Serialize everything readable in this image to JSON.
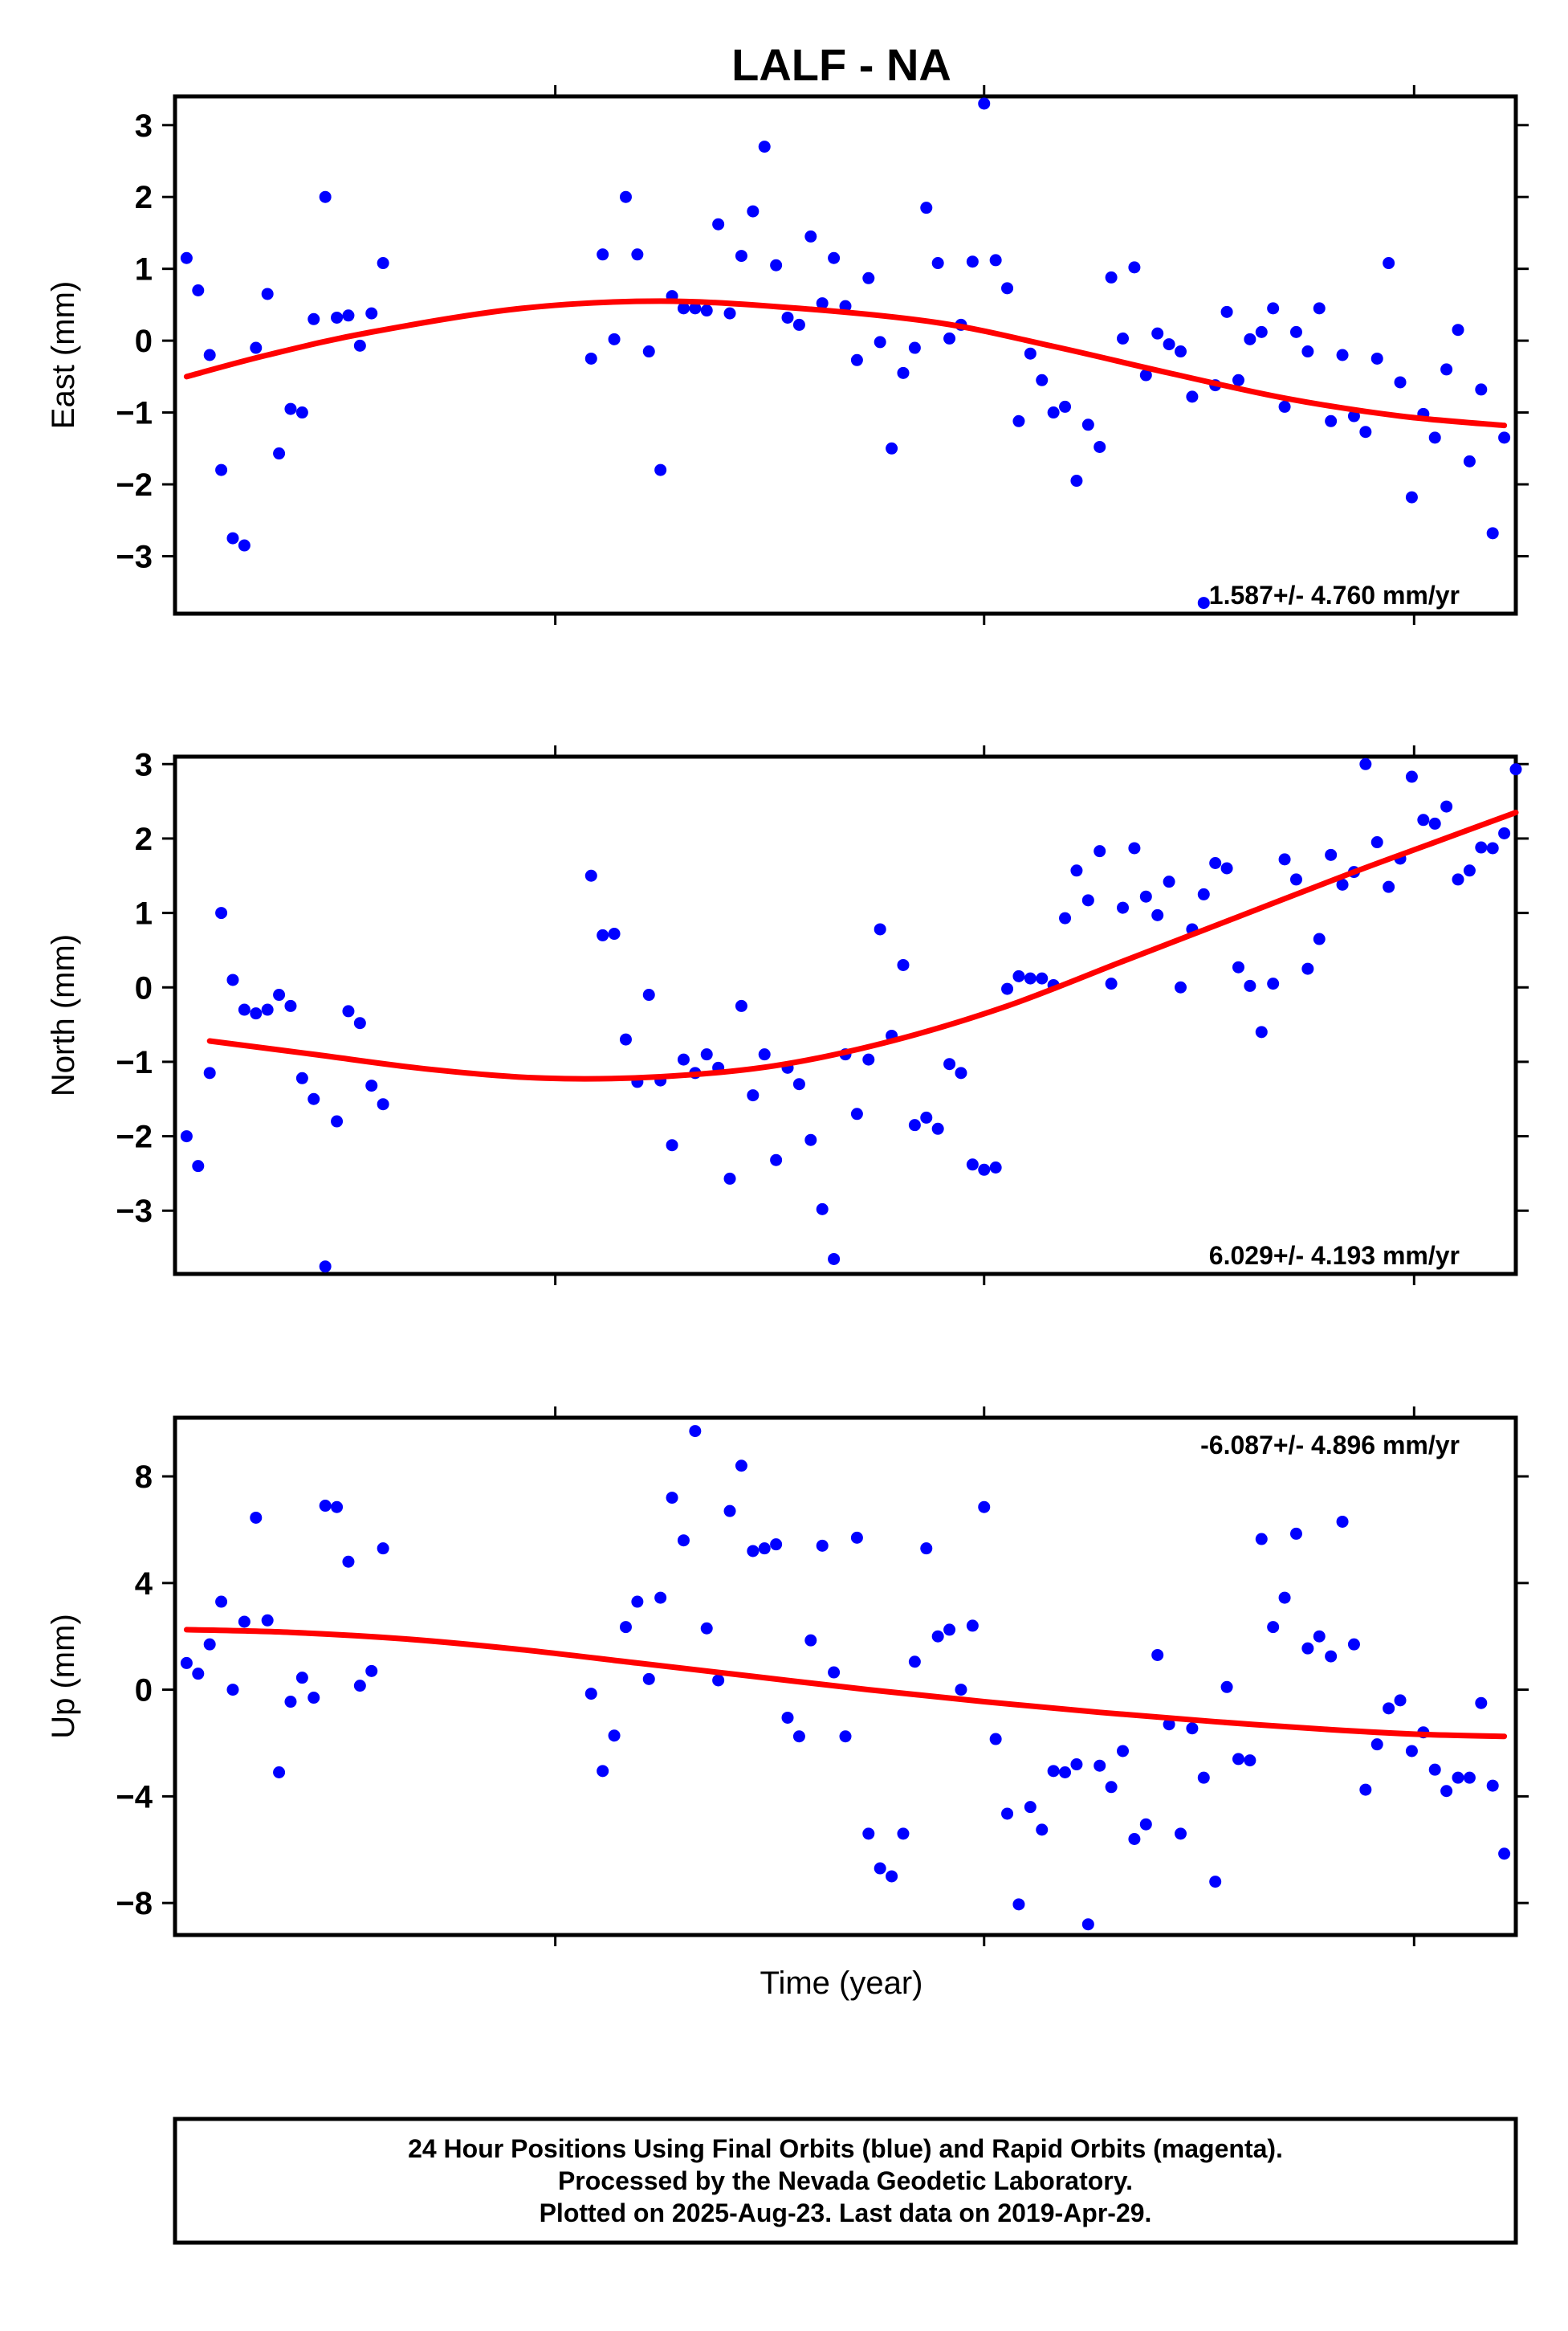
{
  "title": "LALF - NA",
  "xlabel": "Time (year)",
  "footer": {
    "line1": "24 Hour Positions Using Final Orbits (blue) and Rapid Orbits (magenta).",
    "line2": "Processed by the Nevada Geodetic Laboratory.",
    "line3": "Plotted on 2025-Aug-23. Last data on 2019-Apr-29."
  },
  "colors": {
    "points": "#0000ff",
    "fit": "#ff0000",
    "axes": "#000000"
  },
  "chart_data": [
    {
      "type": "scatter",
      "name": "east",
      "ylabel": "East (mm)",
      "rate_text": "1.587+/- 4.760 mm/yr",
      "rate_position": "bottom-right",
      "ylim": [
        -3.8,
        3.4
      ],
      "yticks": [
        -3,
        -2,
        -1,
        0,
        1,
        2,
        3
      ],
      "xlim": [
        0,
        116
      ],
      "xtick_positions": [
        32.9,
        70.0,
        107.2
      ],
      "grid": false,
      "points": [
        [
          1,
          1.15
        ],
        [
          2,
          0.7
        ],
        [
          3,
          -0.2
        ],
        [
          4,
          -1.8
        ],
        [
          5,
          -2.75
        ],
        [
          6,
          -2.85
        ],
        [
          7,
          -0.1
        ],
        [
          8,
          0.65
        ],
        [
          9,
          -1.57
        ],
        [
          10,
          -0.95
        ],
        [
          11,
          -1.0
        ],
        [
          12,
          0.3
        ],
        [
          13,
          2.0
        ],
        [
          14,
          0.32
        ],
        [
          15,
          0.35
        ],
        [
          16,
          -0.07
        ],
        [
          17,
          0.38
        ],
        [
          18,
          1.08
        ],
        [
          36,
          -0.25
        ],
        [
          37,
          1.2
        ],
        [
          38,
          0.02
        ],
        [
          39,
          2.0
        ],
        [
          40,
          1.2
        ],
        [
          41,
          -0.15
        ],
        [
          42,
          -1.8
        ],
        [
          43,
          0.62
        ],
        [
          44,
          0.45
        ],
        [
          45,
          0.45
        ],
        [
          46,
          0.42
        ],
        [
          47,
          1.62
        ],
        [
          48,
          0.38
        ],
        [
          49,
          1.18
        ],
        [
          50,
          1.8
        ],
        [
          51,
          2.7
        ],
        [
          52,
          1.05
        ],
        [
          53,
          0.32
        ],
        [
          54,
          0.22
        ],
        [
          55,
          1.45
        ],
        [
          56,
          0.52
        ],
        [
          57,
          1.15
        ],
        [
          58,
          0.48
        ],
        [
          59,
          -0.27
        ],
        [
          60,
          0.87
        ],
        [
          61,
          -0.02
        ],
        [
          62,
          -1.5
        ],
        [
          63,
          -0.45
        ],
        [
          64,
          -0.1
        ],
        [
          65,
          1.85
        ],
        [
          66,
          1.08
        ],
        [
          67,
          0.03
        ],
        [
          68,
          0.22
        ],
        [
          69,
          1.1
        ],
        [
          70,
          3.3
        ],
        [
          71,
          1.12
        ],
        [
          72,
          0.73
        ],
        [
          73,
          -1.12
        ],
        [
          74,
          -0.18
        ],
        [
          75,
          -0.55
        ],
        [
          76,
          -1.0
        ],
        [
          77,
          -0.92
        ],
        [
          78,
          -1.95
        ],
        [
          79,
          -1.17
        ],
        [
          80,
          -1.48
        ],
        [
          81,
          0.88
        ],
        [
          82,
          0.03
        ],
        [
          83,
          1.02
        ],
        [
          84,
          -0.48
        ],
        [
          85,
          0.1
        ],
        [
          86,
          -0.05
        ],
        [
          87,
          -0.15
        ],
        [
          88,
          -0.78
        ],
        [
          89,
          -3.65
        ],
        [
          90,
          -0.62
        ],
        [
          91,
          0.4
        ],
        [
          92,
          -0.55
        ],
        [
          93,
          0.02
        ],
        [
          94,
          0.12
        ],
        [
          95,
          0.45
        ],
        [
          96,
          -0.92
        ],
        [
          97,
          0.12
        ],
        [
          98,
          -0.15
        ],
        [
          99,
          0.45
        ],
        [
          100,
          -1.12
        ],
        [
          101,
          -0.2
        ],
        [
          102,
          -1.05
        ],
        [
          103,
          -1.27
        ],
        [
          104,
          -0.25
        ],
        [
          105,
          1.08
        ],
        [
          106,
          -0.58
        ],
        [
          107,
          -2.18
        ],
        [
          108,
          -1.02
        ],
        [
          109,
          -1.35
        ],
        [
          110,
          -0.4
        ],
        [
          111,
          0.15
        ],
        [
          112,
          -1.68
        ],
        [
          113,
          -0.68
        ],
        [
          114,
          -2.68
        ],
        [
          115,
          -1.35
        ]
      ],
      "fit": [
        [
          1,
          -0.5
        ],
        [
          8,
          -0.2
        ],
        [
          17,
          0.12
        ],
        [
          30,
          0.45
        ],
        [
          42,
          0.55
        ],
        [
          54,
          0.45
        ],
        [
          66,
          0.25
        ],
        [
          76,
          -0.08
        ],
        [
          86,
          -0.45
        ],
        [
          96,
          -0.8
        ],
        [
          106,
          -1.05
        ],
        [
          115,
          -1.18
        ]
      ]
    },
    {
      "type": "scatter",
      "name": "north",
      "ylabel": "North (mm)",
      "rate_text": "6.029+/- 4.193 mm/yr",
      "rate_position": "bottom-right",
      "ylim": [
        -3.85,
        3.1
      ],
      "yticks": [
        -3,
        -2,
        -1,
        0,
        1,
        2,
        3
      ],
      "xlim": [
        0,
        116
      ],
      "xtick_positions": [
        32.9,
        70.0,
        107.2
      ],
      "grid": false,
      "points": [
        [
          1,
          -2.0
        ],
        [
          2,
          -2.4
        ],
        [
          3,
          -1.15
        ],
        [
          4,
          1.0
        ],
        [
          5,
          0.1
        ],
        [
          6,
          -0.3
        ],
        [
          7,
          -0.35
        ],
        [
          8,
          -0.3
        ],
        [
          9,
          -0.1
        ],
        [
          10,
          -0.25
        ],
        [
          11,
          -1.22
        ],
        [
          12,
          -1.5
        ],
        [
          13,
          -3.75
        ],
        [
          14,
          -1.8
        ],
        [
          15,
          -0.32
        ],
        [
          16,
          -0.48
        ],
        [
          17,
          -1.32
        ],
        [
          18,
          -1.57
        ],
        [
          36,
          1.5
        ],
        [
          37,
          0.7
        ],
        [
          38,
          0.72
        ],
        [
          39,
          -0.7
        ],
        [
          40,
          -1.27
        ],
        [
          41,
          -0.1
        ],
        [
          42,
          -1.25
        ],
        [
          43,
          -2.12
        ],
        [
          44,
          -0.97
        ],
        [
          45,
          -1.15
        ],
        [
          46,
          -0.9
        ],
        [
          47,
          -1.08
        ],
        [
          48,
          -2.57
        ],
        [
          49,
          -0.25
        ],
        [
          50,
          -1.45
        ],
        [
          51,
          -0.9
        ],
        [
          52,
          -2.32
        ],
        [
          53,
          -1.08
        ],
        [
          54,
          -1.3
        ],
        [
          55,
          -2.05
        ],
        [
          56,
          -2.98
        ],
        [
          57,
          -3.65
        ],
        [
          58,
          -0.9
        ],
        [
          59,
          -1.7
        ],
        [
          60,
          -0.97
        ],
        [
          61,
          0.78
        ],
        [
          62,
          -0.65
        ],
        [
          63,
          0.3
        ],
        [
          64,
          -1.85
        ],
        [
          65,
          -1.75
        ],
        [
          66,
          -1.9
        ],
        [
          67,
          -1.03
        ],
        [
          68,
          -1.15
        ],
        [
          69,
          -2.38
        ],
        [
          70,
          -2.45
        ],
        [
          71,
          -2.42
        ],
        [
          72,
          -0.02
        ],
        [
          73,
          0.15
        ],
        [
          74,
          0.12
        ],
        [
          75,
          0.12
        ],
        [
          76,
          0.03
        ],
        [
          77,
          0.93
        ],
        [
          78,
          1.57
        ],
        [
          79,
          1.17
        ],
        [
          80,
          1.83
        ],
        [
          81,
          0.05
        ],
        [
          82,
          1.07
        ],
        [
          83,
          1.87
        ],
        [
          84,
          1.22
        ],
        [
          85,
          0.97
        ],
        [
          86,
          1.42
        ],
        [
          87,
          0.0
        ],
        [
          88,
          0.78
        ],
        [
          89,
          1.25
        ],
        [
          90,
          1.67
        ],
        [
          91,
          1.6
        ],
        [
          92,
          0.27
        ],
        [
          93,
          0.02
        ],
        [
          94,
          -0.6
        ],
        [
          95,
          0.05
        ],
        [
          96,
          1.72
        ],
        [
          97,
          1.45
        ],
        [
          98,
          0.25
        ],
        [
          99,
          0.65
        ],
        [
          100,
          1.78
        ],
        [
          101,
          1.38
        ],
        [
          102,
          1.55
        ],
        [
          103,
          3.0
        ],
        [
          104,
          1.95
        ],
        [
          105,
          1.35
        ],
        [
          106,
          1.73
        ],
        [
          107,
          2.83
        ],
        [
          108,
          2.25
        ],
        [
          109,
          2.2
        ],
        [
          110,
          2.43
        ],
        [
          111,
          1.45
        ],
        [
          112,
          1.57
        ],
        [
          113,
          1.88
        ],
        [
          114,
          1.87
        ],
        [
          115,
          2.07
        ],
        [
          116,
          2.93
        ]
      ],
      "fit": [
        [
          3,
          -0.72
        ],
        [
          12,
          -0.9
        ],
        [
          22,
          -1.1
        ],
        [
          32,
          -1.22
        ],
        [
          42,
          -1.2
        ],
        [
          52,
          -1.05
        ],
        [
          62,
          -0.72
        ],
        [
          72,
          -0.25
        ],
        [
          82,
          0.35
        ],
        [
          92,
          0.95
        ],
        [
          102,
          1.55
        ],
        [
          109,
          1.95
        ],
        [
          116,
          2.35
        ]
      ]
    },
    {
      "type": "scatter",
      "name": "up",
      "ylabel": "Up (mm)",
      "rate_text": "-6.087+/- 4.896 mm/yr",
      "rate_position": "top-right",
      "ylim": [
        -9.2,
        10.2
      ],
      "yticks": [
        -8,
        -4,
        0,
        4,
        8
      ],
      "xlim": [
        0,
        116
      ],
      "xtick_positions": [
        32.9,
        70.0,
        107.2
      ],
      "grid": false,
      "points": [
        [
          1,
          1.0
        ],
        [
          2,
          0.6
        ],
        [
          3,
          1.7
        ],
        [
          4,
          3.3
        ],
        [
          5,
          0.0
        ],
        [
          6,
          2.55
        ],
        [
          7,
          6.45
        ],
        [
          8,
          2.6
        ],
        [
          9,
          -3.1
        ],
        [
          10,
          -0.45
        ],
        [
          11,
          0.45
        ],
        [
          12,
          -0.3
        ],
        [
          13,
          6.9
        ],
        [
          14,
          6.85
        ],
        [
          15,
          4.8
        ],
        [
          16,
          0.15
        ],
        [
          17,
          0.7
        ],
        [
          18,
          5.3
        ],
        [
          36,
          -0.15
        ],
        [
          37,
          -3.05
        ],
        [
          38,
          -1.72
        ],
        [
          39,
          2.35
        ],
        [
          40,
          3.3
        ],
        [
          41,
          0.4
        ],
        [
          42,
          3.45
        ],
        [
          43,
          7.2
        ],
        [
          44,
          5.6
        ],
        [
          45,
          9.7
        ],
        [
          46,
          2.3
        ],
        [
          47,
          0.35
        ],
        [
          48,
          6.7
        ],
        [
          49,
          8.4
        ],
        [
          50,
          5.2
        ],
        [
          51,
          5.3
        ],
        [
          52,
          5.45
        ],
        [
          53,
          -1.05
        ],
        [
          54,
          -1.75
        ],
        [
          55,
          1.85
        ],
        [
          56,
          5.4
        ],
        [
          57,
          0.65
        ],
        [
          58,
          -1.75
        ],
        [
          59,
          5.7
        ],
        [
          60,
          -5.4
        ],
        [
          61,
          -6.7
        ],
        [
          62,
          -7.0
        ],
        [
          63,
          -5.4
        ],
        [
          64,
          1.05
        ],
        [
          65,
          5.3
        ],
        [
          66,
          2.0
        ],
        [
          67,
          2.25
        ],
        [
          68,
          0.0
        ],
        [
          69,
          2.4
        ],
        [
          70,
          6.85
        ],
        [
          71,
          -1.85
        ],
        [
          72,
          -4.65
        ],
        [
          73,
          -8.05
        ],
        [
          74,
          -4.4
        ],
        [
          75,
          -5.25
        ],
        [
          76,
          -3.05
        ],
        [
          77,
          -3.1
        ],
        [
          78,
          -2.8
        ],
        [
          79,
          -8.8
        ],
        [
          80,
          -2.85
        ],
        [
          81,
          -3.65
        ],
        [
          82,
          -2.3
        ],
        [
          83,
          -5.6
        ],
        [
          84,
          -5.05
        ],
        [
          85,
          1.3
        ],
        [
          86,
          -1.3
        ],
        [
          87,
          -5.4
        ],
        [
          88,
          -1.45
        ],
        [
          89,
          -3.3
        ],
        [
          90,
          -7.2
        ],
        [
          91,
          0.1
        ],
        [
          92,
          -2.6
        ],
        [
          93,
          -2.65
        ],
        [
          94,
          5.65
        ],
        [
          95,
          2.35
        ],
        [
          96,
          3.45
        ],
        [
          97,
          5.85
        ],
        [
          98,
          1.55
        ],
        [
          99,
          2.0
        ],
        [
          100,
          1.25
        ],
        [
          101,
          6.3
        ],
        [
          102,
          1.7
        ],
        [
          103,
          -3.75
        ],
        [
          104,
          -2.05
        ],
        [
          105,
          -0.7
        ],
        [
          106,
          -0.4
        ],
        [
          107,
          -2.3
        ],
        [
          108,
          -1.6
        ],
        [
          109,
          -3.0
        ],
        [
          110,
          -3.8
        ],
        [
          111,
          -3.3
        ],
        [
          112,
          -3.3
        ],
        [
          113,
          -0.5
        ],
        [
          114,
          -3.6
        ],
        [
          115,
          -6.15
        ]
      ],
      "fit": [
        [
          1,
          2.25
        ],
        [
          10,
          2.15
        ],
        [
          20,
          1.9
        ],
        [
          30,
          1.5
        ],
        [
          40,
          1.0
        ],
        [
          50,
          0.5
        ],
        [
          60,
          0.0
        ],
        [
          70,
          -0.45
        ],
        [
          80,
          -0.85
        ],
        [
          90,
          -1.2
        ],
        [
          100,
          -1.5
        ],
        [
          108,
          -1.68
        ],
        [
          115,
          -1.75
        ]
      ]
    }
  ]
}
